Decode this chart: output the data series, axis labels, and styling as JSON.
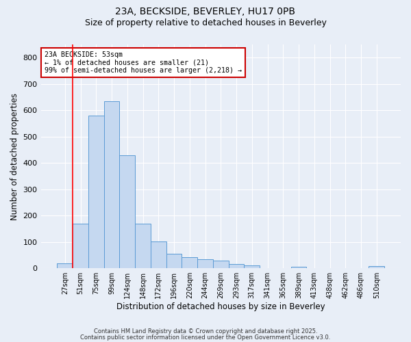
{
  "title_line1": "23A, BECKSIDE, BEVERLEY, HU17 0PB",
  "title_line2": "Size of property relative to detached houses in Beverley",
  "xlabel": "Distribution of detached houses by size in Beverley",
  "ylabel": "Number of detached properties",
  "bar_labels": [
    "27sqm",
    "51sqm",
    "75sqm",
    "99sqm",
    "124sqm",
    "148sqm",
    "172sqm",
    "196sqm",
    "220sqm",
    "244sqm",
    "269sqm",
    "293sqm",
    "317sqm",
    "341sqm",
    "365sqm",
    "389sqm",
    "413sqm",
    "438sqm",
    "462sqm",
    "486sqm",
    "510sqm"
  ],
  "bar_values": [
    20,
    170,
    580,
    635,
    430,
    170,
    103,
    55,
    42,
    35,
    30,
    15,
    11,
    0,
    0,
    6,
    0,
    0,
    0,
    0,
    8
  ],
  "bar_color": "#c5d8f0",
  "bar_edge_color": "#5b9bd5",
  "background_color": "#e8eef7",
  "grid_color": "#ffffff",
  "red_line_x": 1.0,
  "ylim": [
    0,
    850
  ],
  "yticks": [
    0,
    100,
    200,
    300,
    400,
    500,
    600,
    700,
    800
  ],
  "annotation_title": "23A BECKSIDE: 53sqm",
  "annotation_line2": "← 1% of detached houses are smaller (21)",
  "annotation_line3": "99% of semi-detached houses are larger (2,218) →",
  "annotation_box_color": "#ffffff",
  "annotation_box_edge": "#cc0000",
  "footnote1": "Contains HM Land Registry data © Crown copyright and database right 2025.",
  "footnote2": "Contains public sector information licensed under the Open Government Licence v3.0."
}
